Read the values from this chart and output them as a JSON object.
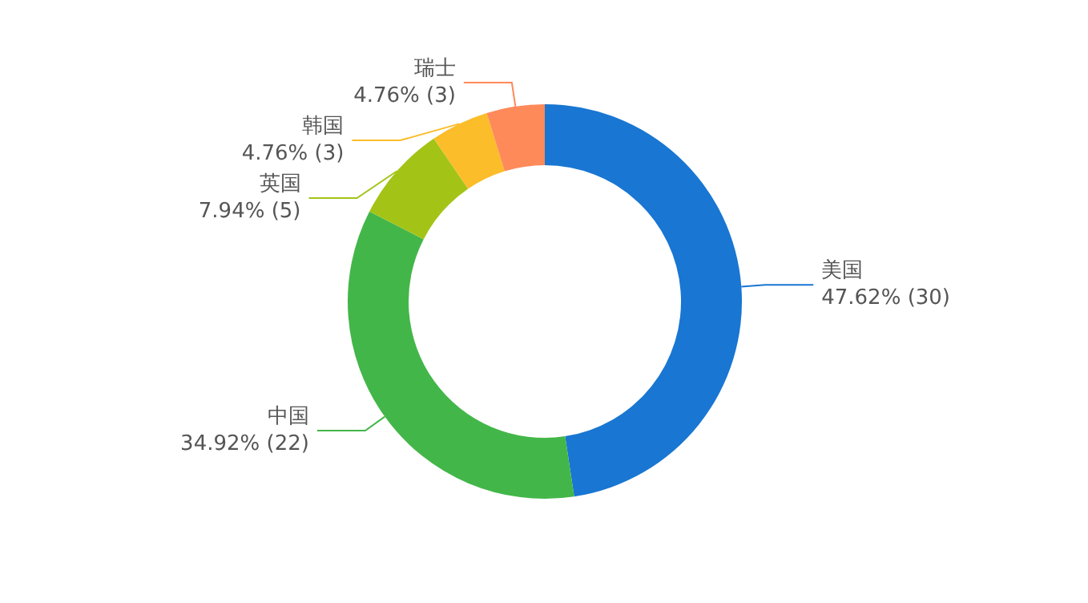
{
  "chart_data": {
    "type": "donut",
    "categories": [
      "美国",
      "中国",
      "英国",
      "韩国",
      "瑞士"
    ],
    "values": [
      30,
      22,
      5,
      3,
      3
    ],
    "value_labels": [
      "47.62% (30)",
      "34.92% (22)",
      "7.94% (5)",
      "4.76% (3)",
      "4.76% (3)"
    ],
    "colors": [
      "#1976d2",
      "#43b649",
      "#a3c417",
      "#fbbd2a",
      "#fe8a5a"
    ]
  }
}
